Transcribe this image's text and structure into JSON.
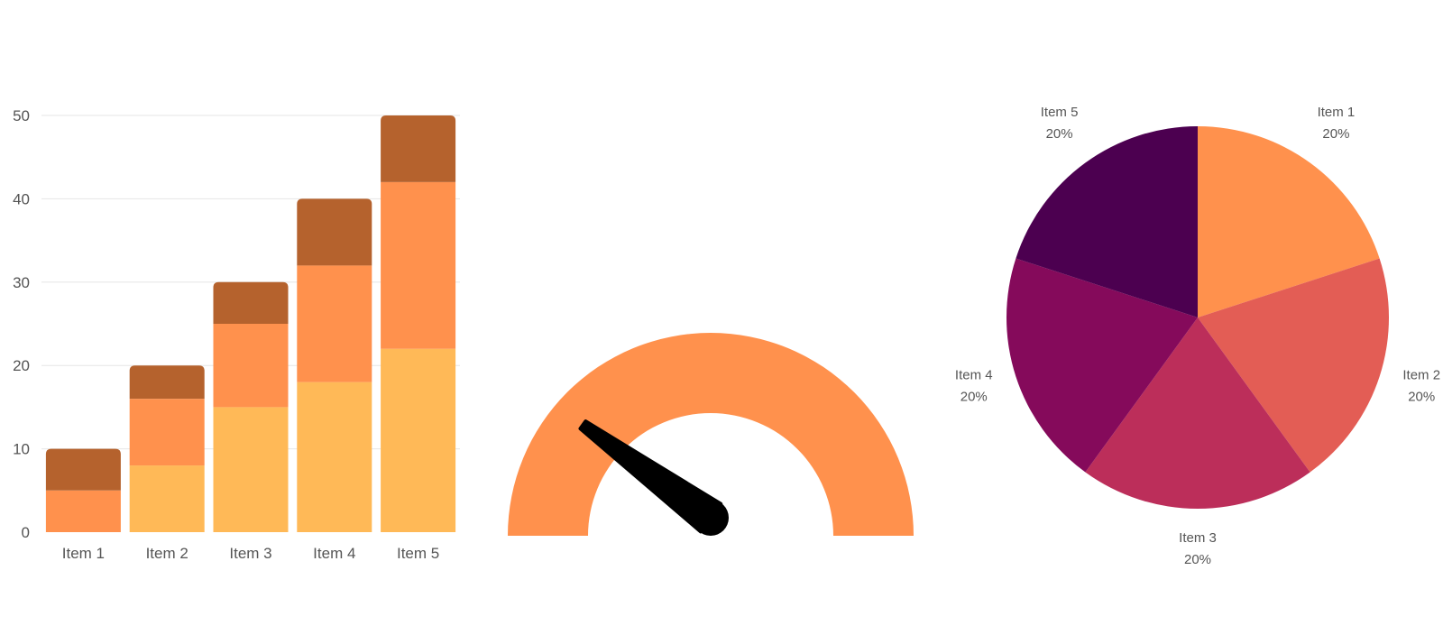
{
  "chart_data": [
    {
      "type": "bar",
      "stacked": true,
      "categories": [
        "Item 1",
        "Item 2",
        "Item 3",
        "Item 4",
        "Item 5"
      ],
      "series": [
        {
          "values": [
            0,
            8,
            15,
            18,
            22
          ],
          "color": "#FFB957"
        },
        {
          "values": [
            5,
            8,
            10,
            14,
            20
          ],
          "color": "#FF914D"
        },
        {
          "values": [
            5,
            4,
            5,
            8,
            8
          ],
          "color": "#B5622D"
        }
      ],
      "yticks": [
        "0",
        "10",
        "20",
        "30",
        "40",
        "50"
      ],
      "ylim": [
        0,
        50
      ],
      "grid": true,
      "legend": "none"
    },
    {
      "type": "gauge",
      "value": 0.2,
      "range": [
        0,
        1
      ],
      "arc_color": "#FF914D",
      "needle_color": "#000000"
    },
    {
      "type": "pie",
      "slices": [
        {
          "label": "Item 1",
          "value": 20,
          "percent": "20%",
          "color": "#FF914D"
        },
        {
          "label": "Item 2",
          "value": 20,
          "percent": "20%",
          "color": "#E35D55"
        },
        {
          "label": "Item 3",
          "value": 20,
          "percent": "20%",
          "color": "#BC2E5A"
        },
        {
          "label": "Item 4",
          "value": 20,
          "percent": "20%",
          "color": "#850A5B"
        },
        {
          "label": "Item 5",
          "value": 20,
          "percent": "20%",
          "color": "#4C0050"
        }
      ],
      "legend": "none"
    }
  ]
}
